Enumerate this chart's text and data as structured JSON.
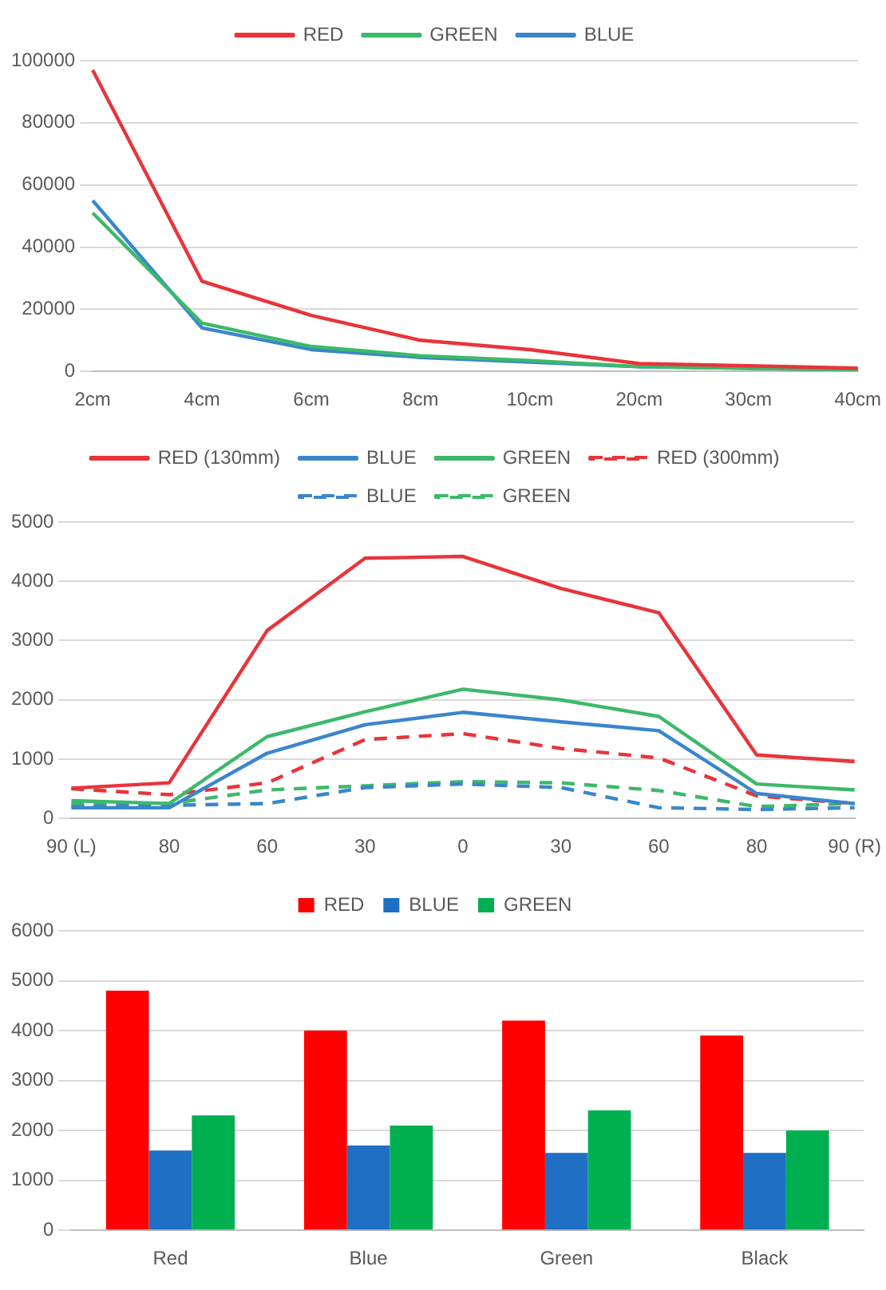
{
  "chart_data": [
    {
      "type": "line",
      "categories": [
        "2cm",
        "4cm",
        "6cm",
        "8cm",
        "10cm",
        "20cm",
        "30cm",
        "40cm"
      ],
      "series": [
        {
          "name": "RED",
          "color": "#e8343a",
          "values": [
            97000,
            29000,
            18000,
            10000,
            7000,
            2500,
            1800,
            1000
          ]
        },
        {
          "name": "GREEN",
          "color": "#3cb96a",
          "values": [
            51000,
            15500,
            8000,
            5000,
            3500,
            1500,
            1000,
            500
          ]
        },
        {
          "name": "BLUE",
          "color": "#3a86cc",
          "values": [
            55000,
            14000,
            7000,
            4500,
            3000,
            1500,
            1000,
            500
          ]
        }
      ],
      "ylim": [
        0,
        100000
      ],
      "yticks": [
        0,
        20000,
        40000,
        60000,
        80000,
        100000
      ],
      "grid": "y",
      "legend": "top",
      "marker": "none"
    },
    {
      "type": "line",
      "categories": [
        "90 (L)",
        "80",
        "60",
        "30",
        "0",
        "30",
        "60",
        "80",
        "90 (R)"
      ],
      "series": [
        {
          "name": "RED (130mm)",
          "color": "#e8343a",
          "values": [
            510,
            600,
            3170,
            4390,
            4420,
            3880,
            3470,
            1070,
            960
          ]
        },
        {
          "name": "BLUE",
          "color": "#3a86cc",
          "values": [
            180,
            180,
            1100,
            1580,
            1790,
            1630,
            1480,
            420,
            250
          ]
        },
        {
          "name": "GREEN",
          "color": "#3cb96a",
          "values": [
            300,
            250,
            1380,
            1800,
            2180,
            2000,
            1720,
            580,
            480
          ]
        },
        {
          "name": "RED (300mm)",
          "color": "#e8343a",
          "line_style": "dashed",
          "values": [
            500,
            400,
            600,
            1330,
            1430,
            1180,
            1020,
            380,
            250
          ]
        },
        {
          "name": "BLUE",
          "color": "#3a86cc",
          "line_style": "dashed",
          "values": [
            200,
            220,
            250,
            520,
            580,
            520,
            180,
            150,
            180
          ]
        },
        {
          "name": "GREEN",
          "color": "#3cb96a",
          "line_style": "dashed",
          "values": [
            250,
            250,
            480,
            550,
            620,
            600,
            470,
            200,
            250
          ]
        }
      ],
      "ylim": [
        0,
        5000
      ],
      "yticks": [
        0,
        1000,
        2000,
        3000,
        4000,
        5000
      ],
      "grid": "y",
      "legend": "top",
      "marker": "none"
    },
    {
      "type": "bar",
      "categories": [
        "Red",
        "Blue",
        "Green",
        "Black"
      ],
      "series": [
        {
          "name": "RED",
          "color": "#ff0000",
          "values": [
            4800,
            4000,
            4200,
            3900
          ]
        },
        {
          "name": "BLUE",
          "color": "#1f6fc5",
          "values": [
            1600,
            1700,
            1550,
            1550
          ]
        },
        {
          "name": "GREEN",
          "color": "#00b050",
          "values": [
            2300,
            2100,
            2400,
            2000
          ]
        }
      ],
      "ylim": [
        0,
        6000
      ],
      "yticks": [
        0,
        1000,
        2000,
        3000,
        4000,
        5000,
        6000
      ],
      "grid": "y",
      "legend": "top"
    }
  ]
}
